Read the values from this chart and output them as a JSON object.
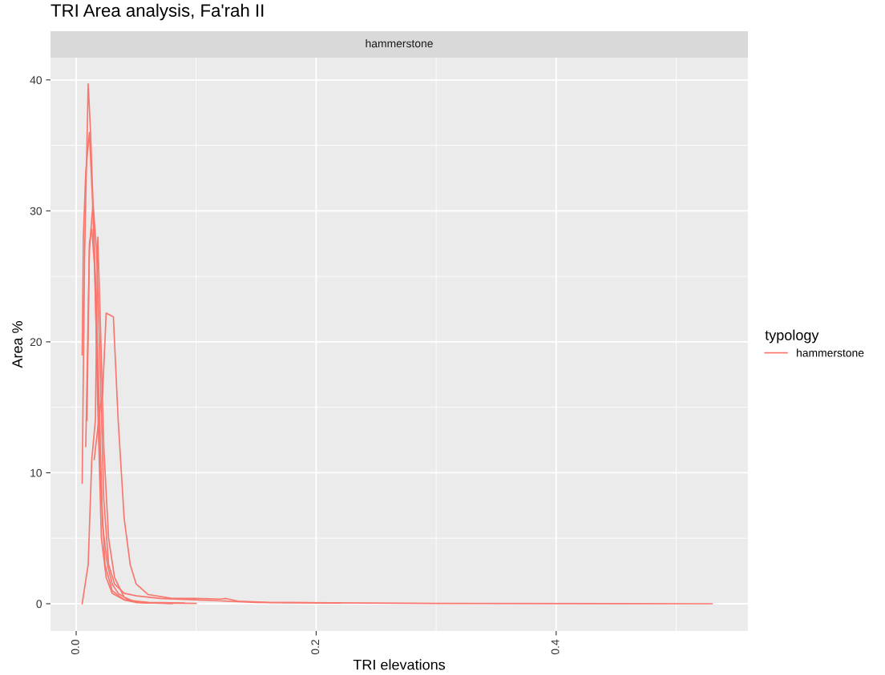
{
  "chart_data": {
    "type": "line",
    "title": "TRI Area analysis, Fa'rah II",
    "subtitle": "hammerstone",
    "xlabel": "TRI elevations",
    "ylabel": "Area %",
    "legend_title": "typology",
    "legend": "right",
    "grid": true,
    "xlim": [
      -0.0214,
      0.5598
    ],
    "ylim": [
      -2.08,
      41.7
    ],
    "xticks": [
      {
        "value": 0.0,
        "label": "0.0"
      },
      {
        "value": 0.2,
        "label": "0.2"
      },
      {
        "value": 0.4,
        "label": "0.4"
      }
    ],
    "yticks": [
      0,
      10,
      20,
      30,
      40
    ],
    "series": [
      {
        "name": "hammerstone",
        "color": "#f8766d",
        "x": [
          0.005,
          0.007,
          0.01,
          0.012,
          0.015,
          0.018,
          0.021,
          0.025,
          0.03,
          0.04,
          0.05,
          0.07,
          0.1
        ],
        "values": [
          9.2,
          26.5,
          39.7,
          36,
          28,
          15,
          5,
          2,
          0.8,
          0.3,
          0.1,
          0.05,
          0.02
        ]
      },
      {
        "color": "#f8766d",
        "x": [
          0.005,
          0.006,
          0.008,
          0.011,
          0.014,
          0.017,
          0.02,
          0.024,
          0.03,
          0.04,
          0.06,
          0.09
        ],
        "values": [
          19,
          28,
          33,
          36,
          30,
          20,
          10,
          3,
          1,
          0.3,
          0.1,
          0.05
        ]
      },
      {
        "color": "#f8766d",
        "x": [
          0.005,
          0.01,
          0.013,
          0.016,
          0.018,
          0.02,
          0.023,
          0.027,
          0.032,
          0.04,
          0.05,
          0.08
        ],
        "values": [
          0,
          3,
          11,
          14,
          28,
          22,
          12,
          5,
          2,
          0.5,
          0.1,
          0
        ]
      },
      {
        "color": "#f8766d",
        "x": [
          0.015,
          0.02,
          0.022,
          0.025,
          0.031,
          0.035,
          0.04,
          0.045,
          0.05,
          0.06,
          0.08,
          0.1,
          0.12,
          0.125,
          0.135,
          0.16,
          0.22
        ],
        "values": [
          11,
          15,
          16,
          22.2,
          21.9,
          14,
          6.5,
          3,
          1.5,
          0.7,
          0.4,
          0.4,
          0.35,
          0.4,
          0.2,
          0.1,
          0.05
        ]
      },
      {
        "color": "#f8766d",
        "x": [
          0.008,
          0.011,
          0.014,
          0.017,
          0.02,
          0.023,
          0.027,
          0.032,
          0.04,
          0.05,
          0.07,
          0.1,
          0.15,
          0.3,
          0.53
        ],
        "values": [
          12,
          27,
          30.6,
          27,
          18,
          8,
          3,
          1.5,
          0.8,
          0.6,
          0.4,
          0.3,
          0.1,
          0.02,
          0
        ]
      },
      {
        "color": "#f8766d",
        "x": [
          0.009,
          0.011,
          0.013,
          0.016,
          0.019,
          0.022,
          0.026,
          0.03,
          0.035,
          0.045,
          0.06
        ],
        "values": [
          14,
          27.5,
          28.6,
          25,
          16,
          6,
          3,
          1.5,
          0.8,
          0.2,
          0.05
        ]
      }
    ]
  }
}
